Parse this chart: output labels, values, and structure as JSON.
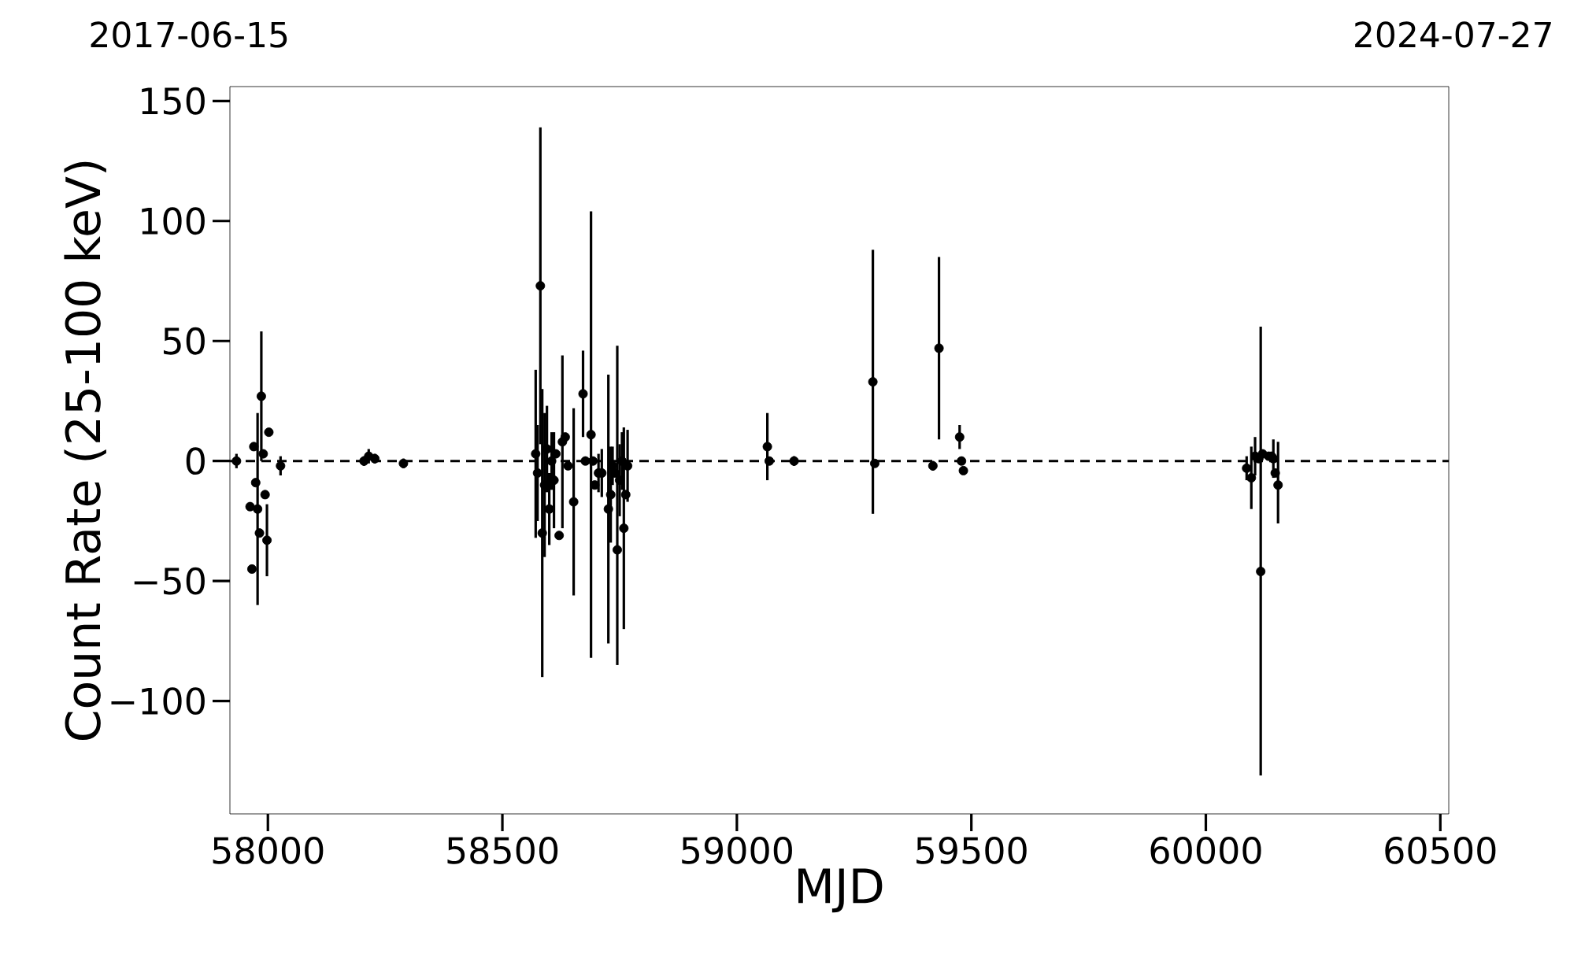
{
  "chart_data": {
    "type": "scatter",
    "xlabel": "MJD",
    "ylabel": "Count Rate (25-100 keV)",
    "xlim": [
      57919,
      60518
    ],
    "xticks": [
      58000,
      58500,
      59000,
      59500,
      60000,
      60500
    ],
    "ylim": [
      -147,
      156
    ],
    "yticks": [
      {
        "value": -100,
        "label": "−100"
      },
      {
        "value": -50,
        "label": "−50"
      },
      0,
      50,
      100,
      150
    ],
    "annotations": [
      "2017-06-15",
      "2024-07-27"
    ],
    "marker": "circle",
    "ref_lines": [
      {
        "axis": "y",
        "value": 0,
        "color": "#000000",
        "line_style": "dashed"
      }
    ],
    "series": [
      {
        "color": "#000000",
        "x": [
          57933,
          57962,
          57966,
          57970,
          57974,
          57978,
          57982,
          57986,
          57990,
          57994,
          57998,
          58002,
          58027,
          58205,
          58215,
          58228,
          58289,
          58571,
          58575,
          58581,
          58585,
          58590,
          58595,
          58600,
          58605,
          58610,
          58614,
          58621,
          58628,
          58634,
          58640,
          58652,
          58672,
          58677,
          58689,
          58693,
          58697,
          58705,
          58712,
          58726,
          58731,
          58735,
          58740,
          58745,
          58750,
          58755,
          58759,
          58763,
          58767,
          59065,
          59069,
          59122,
          59290,
          59294,
          59418,
          59431,
          59475,
          59479,
          59483,
          60087,
          60097,
          60105,
          60113,
          60117,
          60121,
          60134,
          60140,
          60144,
          60148,
          60154
        ],
        "values": [
          0,
          -19,
          -45,
          6,
          -9,
          -20,
          -30,
          27,
          3,
          -14,
          -33,
          12,
          -2,
          0,
          2,
          1,
          -1,
          3,
          -5,
          73,
          -30,
          -10,
          5,
          -20,
          0,
          -8,
          3,
          -31,
          8,
          10,
          -2,
          -17,
          28,
          0,
          11,
          0,
          -10,
          -5,
          -5,
          -20,
          -14,
          -2,
          -5,
          -37,
          -8,
          0,
          -28,
          -14,
          -2,
          6,
          0,
          0,
          33,
          -1,
          -2,
          47,
          10,
          0,
          -4,
          -3,
          -7,
          2,
          1,
          -46,
          3,
          2,
          2,
          1,
          -5,
          -10
        ],
        "errors": [
          3,
          null,
          null,
          null,
          null,
          [
            -60,
            20
          ],
          null,
          [
            0,
            54
          ],
          null,
          null,
          15,
          null,
          4,
          2,
          3,
          2,
          2,
          35,
          20,
          66,
          60,
          30,
          18,
          15,
          12,
          20,
          null,
          null,
          36,
          null,
          null,
          39,
          18,
          null,
          93,
          null,
          null,
          8,
          10,
          56,
          20,
          8,
          null,
          [
            -85,
            48
          ],
          15,
          12,
          42,
          null,
          15,
          14,
          null,
          2,
          55,
          null,
          2,
          38,
          5,
          null,
          null,
          5,
          13,
          8,
          null,
          [
            -131,
            56
          ],
          null,
          null,
          null,
          8,
          null,
          [
            -26,
            8
          ]
        ]
      }
    ]
  }
}
